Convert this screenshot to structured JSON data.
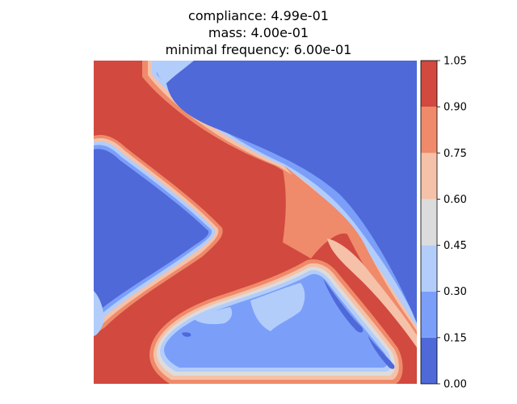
{
  "chart_data": {
    "type": "heatmap",
    "title_lines": [
      "compliance: 4.99e-01",
      "mass: 4.00e-01",
      "minimal frequency: 6.00e-01"
    ],
    "colorbar": {
      "range": [
        0.0,
        1.05
      ],
      "levels": [
        0.0,
        0.15,
        0.3,
        0.45,
        0.6,
        0.75,
        0.9,
        1.05
      ],
      "tick_labels": [
        "0.00",
        "0.15",
        "0.30",
        "0.45",
        "0.60",
        "0.75",
        "0.90",
        "1.05"
      ],
      "colors": [
        "#4f69d9",
        "#7b9ff9",
        "#b3cdfb",
        "#dddcdc",
        "#f5c1a8",
        "#ef8a6a",
        "#d1493f"
      ]
    },
    "regions": [
      {
        "name": "upper-right-void",
        "value_range": [
          0.0,
          0.15
        ]
      },
      {
        "name": "left-void",
        "value_range": [
          0.0,
          0.15
        ]
      },
      {
        "name": "lower-void",
        "value_range": [
          0.15,
          0.45
        ]
      },
      {
        "name": "solid-material",
        "value_range": [
          0.9,
          1.05
        ]
      },
      {
        "name": "transition-band",
        "value_range": [
          0.6,
          0.9
        ]
      }
    ]
  }
}
